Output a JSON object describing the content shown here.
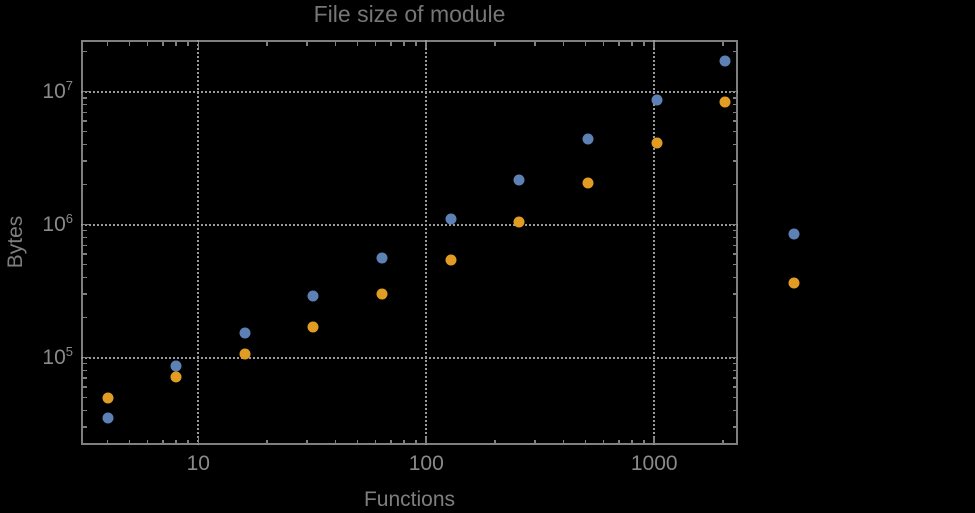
{
  "colors": {
    "background": "#000000",
    "frame": "#7f7f7f",
    "gridline": "#9a9a9a",
    "tick_label": "#8a8a8a",
    "axis_label": "#7e7e7e",
    "title": "#767676",
    "series_blue": "#5e81b5",
    "series_orange": "#e19c24"
  },
  "chart_data": {
    "type": "scatter",
    "title": "File size of module",
    "xlabel": "Functions",
    "ylabel": "Bytes",
    "x_scale": "log",
    "y_scale": "log",
    "xlim": [
      3.06,
      2330
    ],
    "ylim": [
      22000,
      24500000
    ],
    "grid": "dotted gridlines at decades, framed plot with inward log ticks on all four sides",
    "legend_position": "none",
    "x": [
      4,
      8,
      16,
      32,
      64,
      128,
      256,
      512,
      1024,
      2048,
      4096
    ],
    "series": [
      {
        "name": "blue",
        "color": "#5e81b5",
        "values": [
          35000,
          86000,
          153000,
          290000,
          560000,
          1110000,
          2170000,
          4400000,
          8600000,
          17100000,
          850000
        ]
      },
      {
        "name": "orange",
        "color": "#e19c24",
        "values": [
          50000,
          71000,
          106000,
          170000,
          300000,
          540000,
          1040000,
          2070000,
          4100000,
          8300000,
          363000
        ]
      }
    ],
    "x_tick_values": [
      10,
      100,
      1000
    ],
    "x_tick_labels": [
      "10",
      "100",
      "1000"
    ],
    "y_tick_values": [
      100000,
      1000000,
      10000000
    ],
    "y_tick_labels": [
      "10^5",
      "10^6",
      "10^7"
    ]
  }
}
